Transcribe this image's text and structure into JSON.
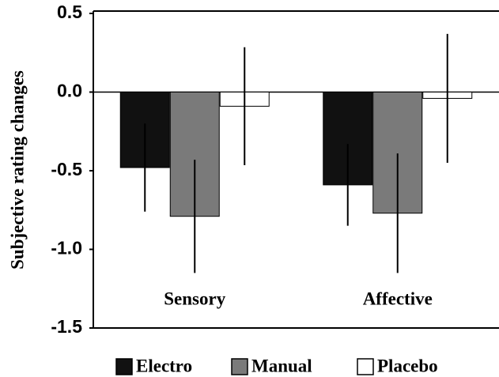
{
  "chart_data": {
    "type": "bar",
    "y_label": "Subjective rating changes",
    "categories": [
      "Sensory",
      "Affective"
    ],
    "series": [
      {
        "name": "Electro",
        "color": "#111111",
        "values": [
          -0.48,
          -0.59
        ],
        "errors": [
          0.28,
          0.26
        ]
      },
      {
        "name": "Manual",
        "color": "#7a7a7a",
        "values": [
          -0.79,
          -0.77
        ],
        "errors": [
          0.36,
          0.38
        ]
      },
      {
        "name": "Placebo",
        "color": "#ffffff",
        "values": [
          -0.09,
          -0.04
        ],
        "errors": [
          0.375,
          0.41
        ]
      }
    ],
    "ylim": [
      -1.5,
      0.5
    ],
    "yticks": [
      0.5,
      {
        "value": 0,
        "label": "0.0"
      },
      -0.5,
      {
        "value": -1,
        "label": "-1.0"
      },
      -1.5
    ],
    "legend": "bottom"
  }
}
